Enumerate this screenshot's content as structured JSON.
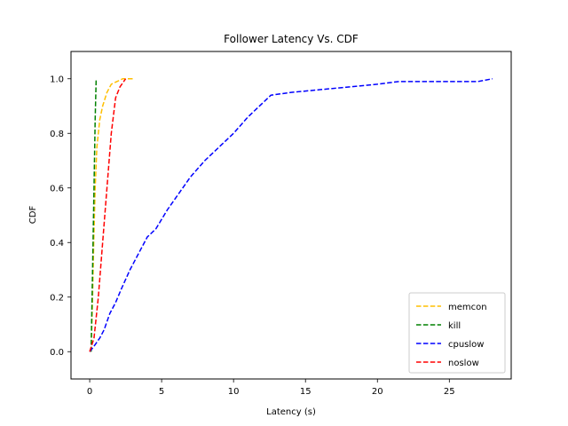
{
  "chart_data": {
    "type": "line",
    "title": "Follower Latency Vs. CDF",
    "xlabel": "Latency (s)",
    "ylabel": "CDF",
    "xlim": [
      -1.3,
      29.3
    ],
    "ylim": [
      -0.1,
      1.1
    ],
    "xticks": [
      0,
      5,
      10,
      15,
      20,
      25
    ],
    "yticks": [
      0.0,
      0.2,
      0.4,
      0.6,
      0.8,
      1.0
    ],
    "xtick_labels": [
      "0",
      "5",
      "10",
      "15",
      "20",
      "25"
    ],
    "ytick_labels": [
      "0.0",
      "0.2",
      "0.4",
      "0.6",
      "0.8",
      "1.0"
    ],
    "grid": false,
    "legend_position": "bottom-right",
    "line_style": "dashed",
    "series": [
      {
        "name": "memcon",
        "color": "#ffbf00",
        "points": [
          [
            0.1,
            0.0
          ],
          [
            0.15,
            0.1
          ],
          [
            0.2,
            0.2
          ],
          [
            0.28,
            0.4
          ],
          [
            0.38,
            0.6
          ],
          [
            0.5,
            0.75
          ],
          [
            0.7,
            0.85
          ],
          [
            0.9,
            0.9
          ],
          [
            1.2,
            0.95
          ],
          [
            1.5,
            0.98
          ],
          [
            1.9,
            0.99
          ],
          [
            2.3,
            1.0
          ],
          [
            3.0,
            1.0
          ]
        ]
      },
      {
        "name": "kill",
        "color": "#008000",
        "points": [
          [
            0.1,
            0.0
          ],
          [
            0.2,
            0.3
          ],
          [
            0.3,
            0.6
          ],
          [
            0.38,
            0.85
          ],
          [
            0.45,
            1.0
          ]
        ]
      },
      {
        "name": "cpuslow",
        "color": "#0000ff",
        "points": [
          [
            0.0,
            0.0
          ],
          [
            0.3,
            0.02
          ],
          [
            0.7,
            0.05
          ],
          [
            1.0,
            0.08
          ],
          [
            1.4,
            0.14
          ],
          [
            1.8,
            0.18
          ],
          [
            2.2,
            0.23
          ],
          [
            2.8,
            0.3
          ],
          [
            3.3,
            0.35
          ],
          [
            4.0,
            0.42
          ],
          [
            4.6,
            0.45
          ],
          [
            5.4,
            0.52
          ],
          [
            6.2,
            0.58
          ],
          [
            7.0,
            0.64
          ],
          [
            8.0,
            0.7
          ],
          [
            9.0,
            0.75
          ],
          [
            10.0,
            0.8
          ],
          [
            11.0,
            0.86
          ],
          [
            12.0,
            0.91
          ],
          [
            12.6,
            0.94
          ],
          [
            14.0,
            0.95
          ],
          [
            16.0,
            0.96
          ],
          [
            18.0,
            0.97
          ],
          [
            20.0,
            0.98
          ],
          [
            21.5,
            0.99
          ],
          [
            24.0,
            0.99
          ],
          [
            27.0,
            0.99
          ],
          [
            28.0,
            1.0
          ]
        ]
      },
      {
        "name": "noslow",
        "color": "#ff0000",
        "points": [
          [
            0.0,
            0.0
          ],
          [
            0.3,
            0.05
          ],
          [
            0.6,
            0.2
          ],
          [
            0.9,
            0.4
          ],
          [
            1.2,
            0.6
          ],
          [
            1.5,
            0.8
          ],
          [
            1.8,
            0.93
          ],
          [
            2.1,
            0.97
          ],
          [
            2.5,
            1.0
          ]
        ]
      }
    ]
  }
}
